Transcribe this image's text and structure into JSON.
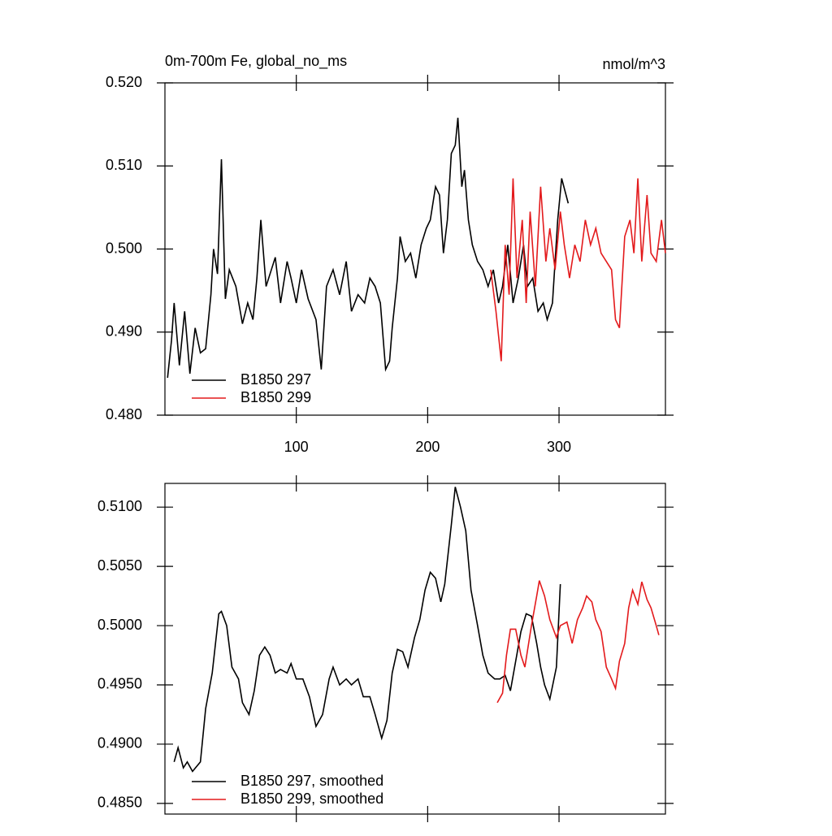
{
  "chart_data": [
    {
      "type": "line",
      "title": "0m-700m Fe, global_no_ms",
      "subtitle": "nmol/m^3",
      "xlim": [
        0,
        381
      ],
      "xticks": [
        100,
        200,
        300
      ],
      "ylim": [
        0.48,
        0.52
      ],
      "yticks": [
        {
          "value": 0.48,
          "label": "0.480"
        },
        {
          "value": 0.49,
          "label": "0.490"
        },
        {
          "value": 0.5,
          "label": "0.500"
        },
        {
          "value": 0.51,
          "label": "0.510"
        },
        {
          "value": 0.52,
          "label": "0.520"
        }
      ],
      "series": [
        {
          "name": "B1850 297",
          "color": "#000000",
          "x": [
            2,
            5,
            7,
            11,
            15,
            19,
            23,
            27,
            31,
            35,
            37,
            40,
            43,
            46,
            49,
            54,
            59,
            63,
            67,
            70,
            73,
            77,
            81,
            84,
            88,
            93,
            96,
            100,
            104,
            109,
            115,
            119,
            123,
            128,
            133,
            138,
            142,
            147,
            152,
            156,
            160,
            164,
            168,
            171,
            173,
            177,
            179,
            183,
            187,
            191,
            195,
            199,
            202,
            206,
            209,
            212,
            215,
            218,
            221,
            223,
            226,
            228,
            231,
            234,
            238,
            242,
            246,
            250,
            254,
            257,
            261,
            265,
            269,
            273,
            276,
            280,
            284,
            288,
            291,
            295,
            299,
            302,
            307
          ],
          "values": [
            0.4845,
            0.489,
            0.4935,
            0.486,
            0.4925,
            0.485,
            0.4905,
            0.4875,
            0.488,
            0.4945,
            0.5,
            0.497,
            0.5108,
            0.494,
            0.4975,
            0.4955,
            0.491,
            0.4935,
            0.4915,
            0.4965,
            0.5035,
            0.4955,
            0.4975,
            0.499,
            0.4935,
            0.4985,
            0.4965,
            0.4935,
            0.4975,
            0.494,
            0.4915,
            0.4855,
            0.4955,
            0.4975,
            0.4945,
            0.4985,
            0.4925,
            0.4945,
            0.4935,
            0.4965,
            0.4955,
            0.4935,
            0.4855,
            0.4865,
            0.4905,
            0.4965,
            0.5015,
            0.4985,
            0.4995,
            0.4965,
            0.5005,
            0.5025,
            0.5035,
            0.5075,
            0.5065,
            0.4995,
            0.5035,
            0.5115,
            0.5125,
            0.5158,
            0.5075,
            0.5095,
            0.5035,
            0.5005,
            0.4985,
            0.4975,
            0.4955,
            0.4975,
            0.4935,
            0.4955,
            0.5005,
            0.4935,
            0.4965,
            0.5005,
            0.4955,
            0.4965,
            0.4925,
            0.4935,
            0.4915,
            0.4935,
            0.5035,
            0.5085,
            0.5055
          ]
        },
        {
          "name": "B1850 299",
          "color": "#e31a1c",
          "x": [
            248,
            252,
            256,
            259,
            262,
            265,
            268,
            272,
            275,
            278,
            282,
            286,
            290,
            293,
            297,
            301,
            304,
            308,
            312,
            316,
            320,
            324,
            328,
            332,
            336,
            340,
            343,
            346,
            350,
            354,
            357,
            360,
            363,
            367,
            370,
            374,
            378,
            381
          ],
          "values": [
            0.4975,
            0.4925,
            0.4865,
            0.5005,
            0.4945,
            0.5085,
            0.4965,
            0.5035,
            0.4935,
            0.5045,
            0.4955,
            0.5075,
            0.4985,
            0.5025,
            0.4975,
            0.5045,
            0.5005,
            0.4965,
            0.5005,
            0.4985,
            0.5035,
            0.5005,
            0.5025,
            0.4995,
            0.4985,
            0.4975,
            0.4915,
            0.4905,
            0.5015,
            0.5035,
            0.4995,
            0.5085,
            0.4985,
            0.5065,
            0.4995,
            0.4985,
            0.5035,
            0.4995
          ]
        }
      ]
    },
    {
      "type": "line",
      "xlim": [
        0,
        381
      ],
      "ylim": [
        0.4841,
        0.512
      ],
      "yticks": [
        {
          "value": 0.485,
          "label": "0.4850"
        },
        {
          "value": 0.49,
          "label": "0.4900"
        },
        {
          "value": 0.495,
          "label": "0.4950"
        },
        {
          "value": 0.5,
          "label": "0.5000"
        },
        {
          "value": 0.505,
          "label": "0.5050"
        },
        {
          "value": 0.51,
          "label": "0.5100"
        }
      ],
      "series": [
        {
          "name": "B1850 297, smoothed",
          "color": "#000000",
          "x": [
            7,
            10,
            14,
            17,
            21,
            27,
            31,
            36,
            41,
            43,
            47,
            51,
            56,
            59,
            64,
            68,
            72,
            76,
            80,
            84,
            88,
            93,
            96,
            100,
            105,
            110,
            115,
            120,
            125,
            128,
            133,
            138,
            142,
            147,
            151,
            156,
            160,
            165,
            169,
            173,
            177,
            181,
            185,
            190,
            194,
            198,
            202,
            206,
            210,
            213,
            218,
            221,
            225,
            229,
            233,
            238,
            242,
            246,
            251,
            255,
            259,
            263,
            267,
            271,
            275,
            279,
            283,
            286,
            289,
            293,
            298,
            301
          ],
          "values": [
            0.4885,
            0.4897,
            0.488,
            0.4885,
            0.4877,
            0.4885,
            0.493,
            0.496,
            0.501,
            0.5012,
            0.5,
            0.4965,
            0.4955,
            0.4935,
            0.4925,
            0.4945,
            0.4975,
            0.4982,
            0.4975,
            0.496,
            0.4963,
            0.496,
            0.4968,
            0.4955,
            0.4955,
            0.494,
            0.4915,
            0.4925,
            0.4955,
            0.4965,
            0.495,
            0.4955,
            0.495,
            0.4955,
            0.494,
            0.494,
            0.4925,
            0.4905,
            0.492,
            0.496,
            0.498,
            0.4978,
            0.4965,
            0.499,
            0.5005,
            0.503,
            0.5045,
            0.504,
            0.502,
            0.5035,
            0.5085,
            0.5117,
            0.51,
            0.508,
            0.503,
            0.5,
            0.4975,
            0.496,
            0.4955,
            0.4955,
            0.4958,
            0.4945,
            0.497,
            0.4995,
            0.501,
            0.5008,
            0.4985,
            0.4965,
            0.495,
            0.4938,
            0.4965,
            0.5035
          ]
        },
        {
          "name": "B1850 299, smoothed",
          "color": "#e31a1c",
          "x": [
            253,
            257,
            260,
            263,
            267,
            271,
            274,
            279,
            283,
            285,
            289,
            293,
            298,
            301,
            306,
            310,
            314,
            318,
            321,
            325,
            328,
            332,
            336,
            340,
            343,
            346,
            350,
            353,
            356,
            360,
            363,
            367,
            370,
            374,
            376
          ],
          "values": [
            0.4935,
            0.4943,
            0.4975,
            0.4997,
            0.4997,
            0.4975,
            0.4965,
            0.5,
            0.5025,
            0.5038,
            0.5025,
            0.5005,
            0.499,
            0.5,
            0.5003,
            0.4985,
            0.5005,
            0.5015,
            0.5025,
            0.502,
            0.5005,
            0.4995,
            0.4965,
            0.4955,
            0.4947,
            0.497,
            0.4985,
            0.5015,
            0.503,
            0.5018,
            0.5037,
            0.5022,
            0.5015,
            0.5,
            0.4992
          ]
        }
      ]
    }
  ]
}
